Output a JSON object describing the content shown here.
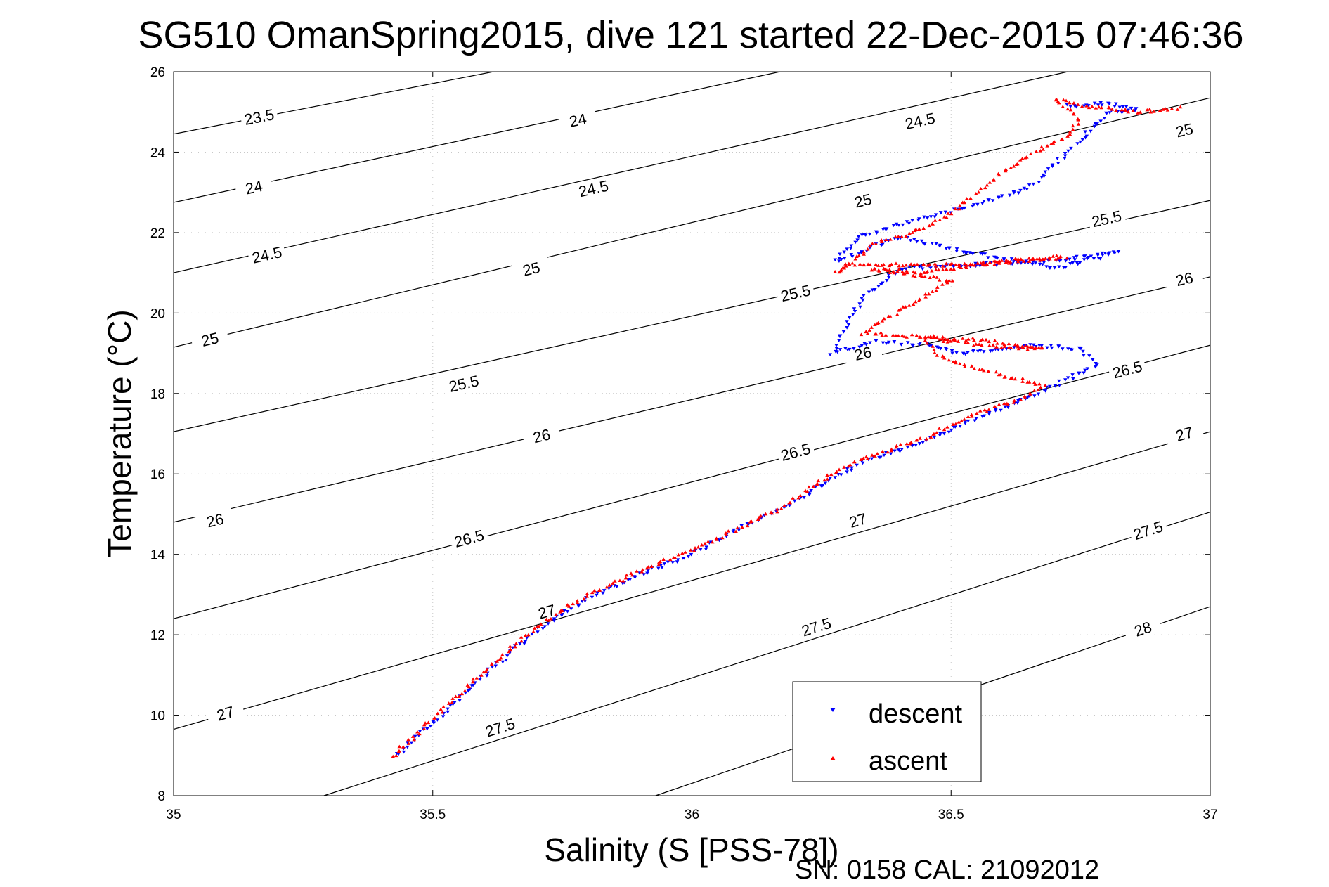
{
  "chart_data": {
    "type": "scatter",
    "title": "SG510 OmanSpring2015, dive 121 started 22-Dec-2015 07:46:36",
    "xlabel": "Salinity (S [PSS-78])",
    "ylabel": "Temperature (°C)",
    "xlim": [
      35,
      37
    ],
    "ylim": [
      8,
      26
    ],
    "xticks": [
      35,
      35.5,
      36,
      36.5,
      37
    ],
    "xtick_labels": [
      "35",
      "35.5",
      "36",
      "36.5",
      "37"
    ],
    "yticks": [
      8,
      10,
      12,
      14,
      16,
      18,
      20,
      22,
      24,
      26
    ],
    "ytick_labels": [
      "8",
      "10",
      "12",
      "14",
      "16",
      "18",
      "20",
      "22",
      "24",
      "26"
    ],
    "grid": true,
    "legend_position": "bottom-right",
    "footer": "SN: 0158  CAL: 21092012",
    "colors": {
      "descent": "#0000ff",
      "ascent": "#ff0000",
      "contour": "#000000",
      "grid": "#c8c8c8"
    },
    "series": [
      {
        "name": "descent",
        "marker": "triangle-down",
        "path": [
          [
            35.43,
            9.0
          ],
          [
            35.5,
            9.8
          ],
          [
            35.6,
            11.0
          ],
          [
            35.7,
            12.1
          ],
          [
            35.8,
            12.9
          ],
          [
            35.9,
            13.5
          ],
          [
            36.0,
            14.0
          ],
          [
            36.1,
            14.7
          ],
          [
            36.2,
            15.3
          ],
          [
            36.27,
            15.9
          ],
          [
            36.35,
            16.4
          ],
          [
            36.45,
            16.8
          ],
          [
            36.55,
            17.4
          ],
          [
            36.65,
            17.9
          ],
          [
            36.7,
            18.2
          ],
          [
            36.78,
            18.7
          ],
          [
            36.75,
            19.1
          ],
          [
            36.65,
            19.2
          ],
          [
            36.52,
            19.0
          ],
          [
            36.45,
            19.2
          ],
          [
            36.36,
            19.3
          ],
          [
            36.27,
            19.0
          ],
          [
            36.33,
            20.4
          ],
          [
            36.4,
            21.1
          ],
          [
            36.55,
            21.2
          ],
          [
            36.7,
            21.3
          ],
          [
            36.82,
            21.5
          ],
          [
            36.7,
            21.1
          ],
          [
            36.5,
            21.6
          ],
          [
            36.4,
            21.9
          ],
          [
            36.28,
            21.3
          ],
          [
            36.32,
            21.9
          ],
          [
            36.4,
            22.2
          ],
          [
            36.55,
            22.7
          ],
          [
            36.65,
            23.1
          ],
          [
            36.75,
            24.3
          ],
          [
            36.8,
            25.0
          ],
          [
            36.86,
            25.05
          ],
          [
            36.8,
            25.2
          ],
          [
            36.72,
            25.15
          ]
        ]
      },
      {
        "name": "ascent",
        "marker": "triangle-up",
        "path": [
          [
            35.42,
            8.95
          ],
          [
            35.5,
            9.9
          ],
          [
            35.6,
            11.1
          ],
          [
            35.7,
            12.2
          ],
          [
            35.8,
            13.0
          ],
          [
            35.9,
            13.6
          ],
          [
            36.0,
            14.1
          ],
          [
            36.1,
            14.7
          ],
          [
            36.18,
            15.2
          ],
          [
            36.22,
            15.6
          ],
          [
            36.3,
            16.2
          ],
          [
            36.38,
            16.6
          ],
          [
            36.45,
            16.9
          ],
          [
            36.55,
            17.5
          ],
          [
            36.62,
            17.8
          ],
          [
            36.68,
            18.2
          ],
          [
            36.55,
            18.6
          ],
          [
            36.48,
            18.9
          ],
          [
            36.45,
            19.4
          ],
          [
            36.55,
            19.2
          ],
          [
            36.68,
            19.1
          ],
          [
            36.58,
            19.3
          ],
          [
            36.47,
            19.4
          ],
          [
            36.33,
            19.5
          ],
          [
            36.42,
            20.2
          ],
          [
            36.5,
            20.8
          ],
          [
            36.35,
            21.1
          ],
          [
            36.45,
            21.0
          ],
          [
            36.6,
            21.3
          ],
          [
            36.72,
            21.4
          ],
          [
            36.55,
            21.2
          ],
          [
            36.3,
            21.2
          ],
          [
            36.28,
            21.0
          ],
          [
            36.35,
            21.7
          ],
          [
            36.45,
            22.1
          ],
          [
            36.5,
            22.5
          ],
          [
            36.55,
            23.0
          ],
          [
            36.6,
            23.5
          ],
          [
            36.65,
            23.9
          ],
          [
            36.72,
            24.4
          ],
          [
            36.75,
            24.8
          ],
          [
            36.7,
            25.3
          ],
          [
            36.78,
            25.1
          ],
          [
            36.86,
            25.0
          ],
          [
            36.95,
            25.1
          ]
        ]
      }
    ],
    "contours": [
      {
        "label": "23.5",
        "pts": [
          [
            35,
            24.45
          ],
          [
            35.617,
            26
          ]
        ],
        "label_at": [
          35.165,
          24.88
        ]
      },
      {
        "label": "24",
        "pts": [
          [
            35,
            22.75
          ],
          [
            36.17,
            26
          ]
        ],
        "label_at": [
          35.155,
          23.13
        ],
        "label_at2": [
          35.78,
          24.8
        ]
      },
      {
        "label": "24.5",
        "pts": [
          [
            35,
            21.0
          ],
          [
            36.725,
            26
          ]
        ],
        "label_at": [
          35.18,
          21.45
        ],
        "label_at2": [
          35.81,
          23.1
        ],
        "label_at3": [
          36.44,
          24.78
        ]
      },
      {
        "label": "25",
        "pts": [
          [
            35,
            19.15
          ],
          [
            37,
            25.35
          ]
        ],
        "label_at": [
          35.07,
          19.35
        ],
        "label_at2": [
          35.69,
          21.1
        ],
        "label_at3": [
          36.33,
          22.8
        ],
        "label_at4": [
          36.95,
          24.55
        ]
      },
      {
        "label": "25.5",
        "pts": [
          [
            35,
            17.05
          ],
          [
            37,
            22.8
          ]
        ],
        "label_at": [
          35.56,
          18.25
        ],
        "label_at2": [
          36.2,
          20.5
        ],
        "label_at3": [
          36.8,
          22.35
        ]
      },
      {
        "label": "26",
        "pts": [
          [
            35,
            14.8
          ],
          [
            37,
            20.9
          ]
        ],
        "label_at": [
          35.08,
          14.85
        ],
        "label_at2": [
          35.71,
          16.95
        ],
        "label_at3": [
          36.33,
          19.0
        ],
        "label_at4": [
          36.95,
          20.85
        ]
      },
      {
        "label": "26.5",
        "pts": [
          [
            35,
            12.4
          ],
          [
            37,
            19.2
          ]
        ],
        "label_at": [
          35.57,
          14.4
        ],
        "label_at2": [
          36.2,
          16.55
        ],
        "label_at3": [
          36.84,
          18.6
        ]
      },
      {
        "label": "27",
        "pts": [
          [
            35,
            9.65
          ],
          [
            37,
            17.05
          ]
        ],
        "label_at": [
          35.1,
          10.05
        ],
        "label_at2": [
          35.72,
          12.58
        ],
        "label_at3": [
          36.32,
          14.85
        ],
        "label_at4": [
          36.95,
          17.0
        ]
      },
      {
        "label": "27.5",
        "pts": [
          [
            35.29,
            8
          ],
          [
            37,
            15.05
          ]
        ],
        "label_at": [
          35.63,
          9.7
        ],
        "label_at2": [
          36.24,
          12.2
        ],
        "label_at3": [
          36.88,
          14.6
        ]
      },
      {
        "label": "28",
        "pts": [
          [
            35.93,
            8
          ],
          [
            37,
            12.7
          ]
        ],
        "label_at": [
          36.87,
          12.15
        ]
      }
    ]
  }
}
